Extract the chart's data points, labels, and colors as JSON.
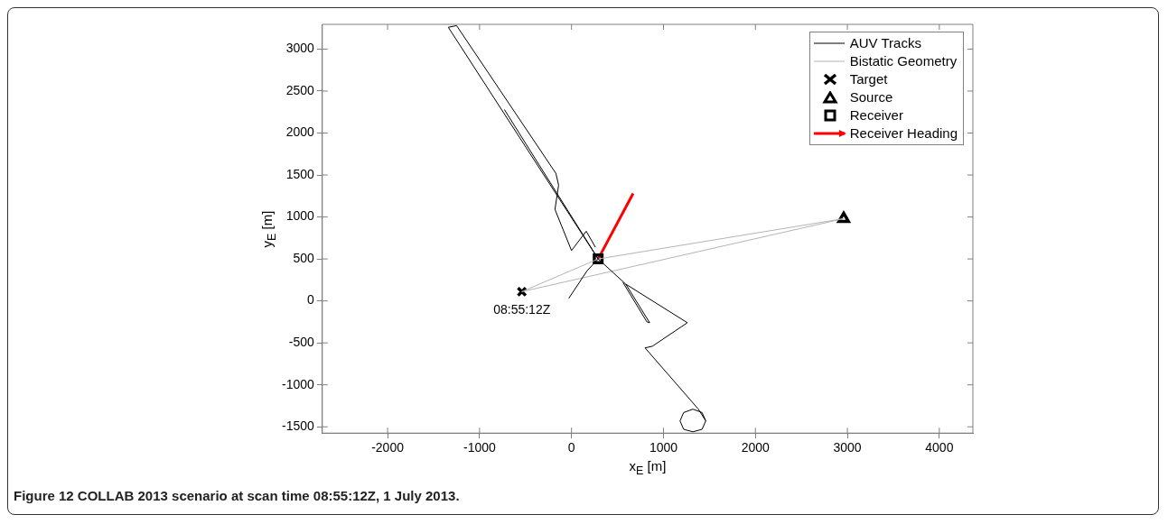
{
  "chart_data": {
    "type": "line",
    "xlabel": "x$_{E}$ [m]",
    "ylabel": "y$_{E}$ [m]",
    "xlim": [
      -2710,
      4365
    ],
    "ylim": [
      -1575,
      3295
    ],
    "xticks": [
      -2000,
      -1000,
      0,
      1000,
      2000,
      3000,
      4000
    ],
    "yticks": [
      -1500,
      -1000,
      -500,
      0,
      500,
      1000,
      1500,
      2000,
      2500,
      3000
    ],
    "grid": false,
    "legend": "top right",
    "series": [
      {
        "name": "AUV Tracks",
        "color": "#000000",
        "x": [
          290,
          -1340,
          -1250,
          -170,
          -140,
          -180,
          0,
          160,
          260
        ],
        "values": [
          500,
          3260,
          3280,
          1520,
          1380,
          1090,
          600,
          830,
          640
        ]
      },
      {
        "color": "#000000",
        "x": [
          -730,
          290,
          590,
          850,
          820,
          560
        ],
        "values": [
          2280,
          500,
          200,
          -260,
          -250,
          220
        ]
      },
      {
        "color": "#000000",
        "x": [
          590,
          1260,
          880,
          800,
          1380,
          1460,
          1420,
          1320,
          1220,
          1180,
          1220,
          1320,
          1420,
          1460
        ],
        "values": [
          200,
          -260,
          -540,
          -560,
          -1290,
          -1430,
          -1530,
          -1560,
          -1530,
          -1430,
          -1330,
          -1290,
          -1330,
          -1430
        ]
      },
      {
        "color": "#000000",
        "x": [
          -30,
          170,
          290
        ],
        "values": [
          30,
          360,
          500
        ]
      },
      {
        "name": "Bistatic Geometry",
        "color": "#b4b4b4",
        "x": [
          -540,
          290,
          2960
        ],
        "values": [
          110,
          500,
          980
        ]
      },
      {
        "color": "#b4b4b4",
        "x": [
          -540,
          2960
        ],
        "values": [
          110,
          980
        ]
      },
      {
        "name": "Target",
        "type": "scatter",
        "marker": "cross",
        "color": "#000000",
        "x": [
          -540
        ],
        "values": [
          110
        ]
      },
      {
        "name": "Source",
        "type": "scatter",
        "marker": "triangle",
        "color": "#000000",
        "x": [
          2960
        ],
        "values": [
          980
        ]
      },
      {
        "name": "Receiver",
        "type": "scatter",
        "marker": "square",
        "color": "#000000",
        "x": [
          290
        ],
        "values": [
          500
        ]
      },
      {
        "name": "Receiver Heading",
        "color": "#ff0000",
        "x": [
          290,
          670
        ],
        "values": [
          500,
          1280
        ]
      }
    ],
    "annotations": [
      {
        "text": "08:55:12Z",
        "x": -540,
        "y": 110
      },
      "Figure 12 COLLAB 2013 scenario at scan time 08:55:12Z, 1 July 2013."
    ]
  }
}
